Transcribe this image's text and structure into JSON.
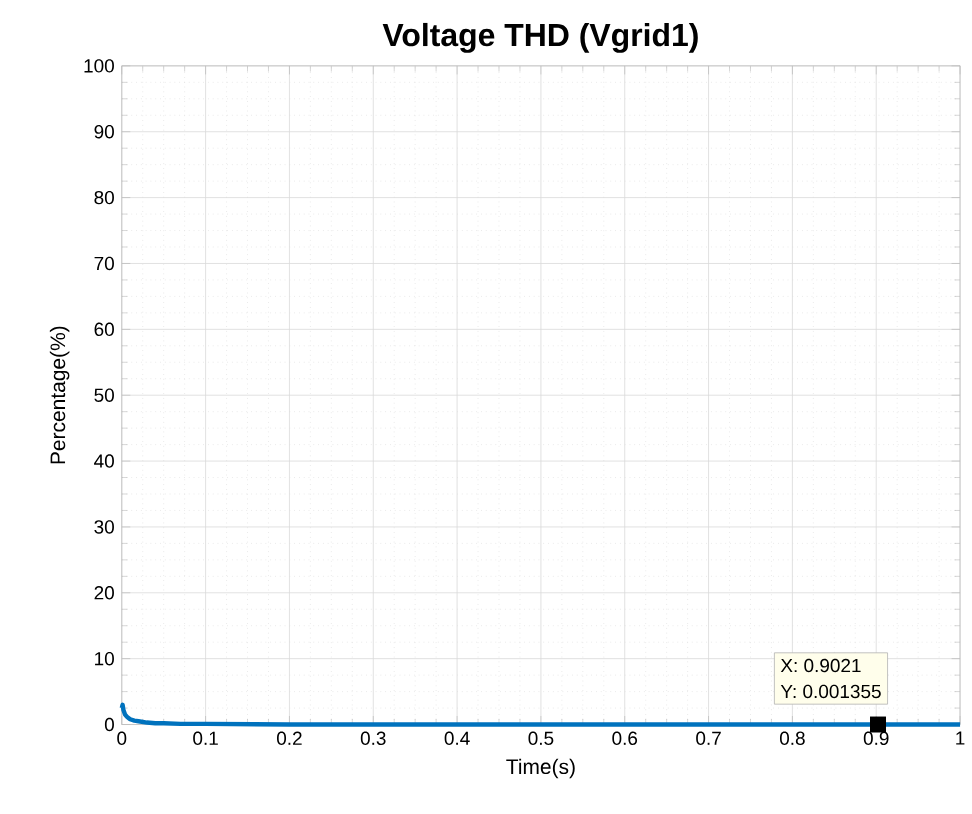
{
  "chart_data": {
    "type": "line",
    "title": "Voltage THD (Vgrid1)",
    "xlabel": "Time(s)",
    "ylabel": "Percentage(%)",
    "x": [
      0,
      0.001,
      0.002,
      0.004,
      0.006,
      0.008,
      0.01,
      0.015,
      0.02,
      0.03,
      0.04,
      0.05,
      0.07,
      0.1,
      0.2,
      0.3,
      0.4,
      0.5,
      0.6,
      0.7,
      0.8,
      0.9021,
      1
    ],
    "series": [
      {
        "color": "#0072bd",
        "values": [
          2.5,
          3,
          2.2,
          1.5,
          1.2,
          1,
          0.8,
          0.6,
          0.5,
          0.3,
          0.2,
          0.2,
          0.1,
          0.1,
          0,
          0,
          0,
          0,
          0,
          0,
          0,
          0.001355,
          0
        ]
      }
    ],
    "xlim": [
      0,
      1
    ],
    "ylim": [
      0,
      100
    ],
    "xticks": [
      0,
      0.1,
      0.2,
      0.3,
      0.4,
      0.5,
      0.6,
      0.7,
      0.8,
      0.9,
      1
    ],
    "yticks": [
      0,
      10,
      20,
      30,
      40,
      50,
      60,
      70,
      80,
      90,
      100
    ],
    "grid": true,
    "annotations": [
      {
        "text": "X: 0.9021",
        "x": 0.9021,
        "y": 0.001355
      },
      {
        "text": "Y: 0.001355",
        "x": 0.9021,
        "y": 0.001355
      }
    ]
  }
}
